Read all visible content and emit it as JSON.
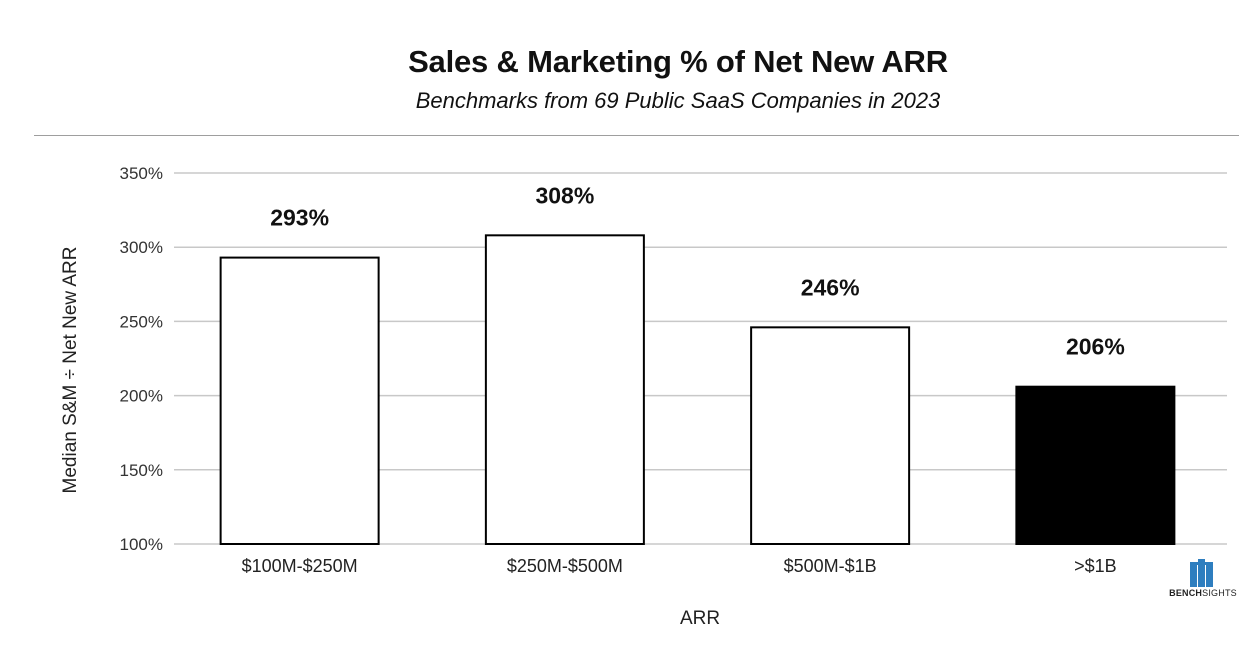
{
  "header": {
    "title": "Sales & Marketing % of Net New ARR",
    "subtitle": "Benchmarks from 69 Public SaaS Companies in 2023"
  },
  "logo": {
    "bold": "BENCH",
    "light": "SIGHTS",
    "color": "#2e7ebf"
  },
  "chart_data": {
    "type": "bar",
    "categories": [
      "$100M-$250M",
      "$250M-$500M",
      "$500M-$1B",
      ">$1B"
    ],
    "values": [
      293,
      308,
      246,
      206
    ],
    "data_labels": [
      "293%",
      "308%",
      "246%",
      "206%"
    ],
    "bar_fills": [
      "#ffffff",
      "#ffffff",
      "#ffffff",
      "#000000"
    ],
    "xlabel": "ARR",
    "ylabel": "Median S&M ÷ Net New ARR",
    "ylim": [
      100,
      350
    ],
    "yticks": [
      100,
      150,
      200,
      250,
      300,
      350
    ],
    "ytick_labels": [
      "100%",
      "150%",
      "200%",
      "250%",
      "300%",
      "350%"
    ],
    "grid": true,
    "legend": "none"
  }
}
